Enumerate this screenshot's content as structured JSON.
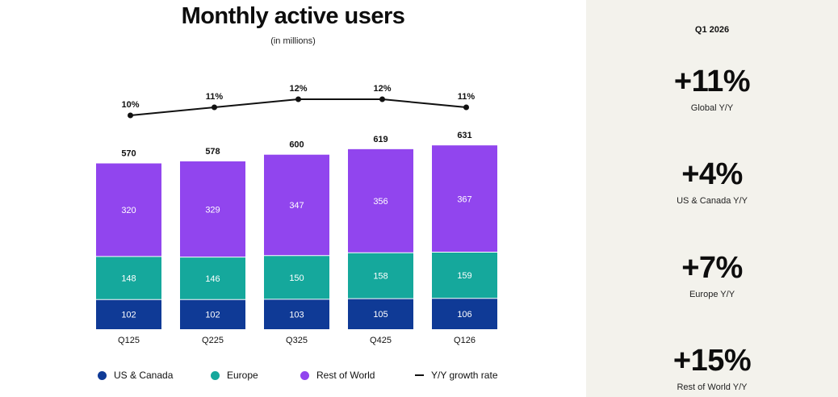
{
  "colors": {
    "us_canada": "#0f3a96",
    "europe": "#15a89c",
    "rest_of_world": "#9145ee",
    "growth_line": "#111111",
    "panel_bg": "#f3f2ec"
  },
  "chart_data": {
    "type": "bar",
    "stacked": true,
    "title": "Monthly active users",
    "subtitle": "(in millions)",
    "categories": [
      "Q125",
      "Q225",
      "Q325",
      "Q425",
      "Q126"
    ],
    "series": [
      {
        "name": "US & Canada",
        "values": [
          102,
          102,
          103,
          105,
          106
        ]
      },
      {
        "name": "Europe",
        "values": [
          148,
          146,
          150,
          158,
          159
        ]
      },
      {
        "name": "Rest of World",
        "values": [
          320,
          329,
          347,
          356,
          367
        ]
      }
    ],
    "totals": [
      570,
      578,
      600,
      619,
      631
    ],
    "growth": {
      "name": "Y/Y growth rate",
      "type": "line",
      "values": [
        10,
        11,
        12,
        12,
        11
      ],
      "labels": [
        "10%",
        "11%",
        "12%",
        "12%",
        "11%"
      ]
    },
    "legend_position": "bottom",
    "grid": false
  },
  "summary": {
    "period": "Q1 2026",
    "kpis": [
      {
        "value": "+11%",
        "label": "Global Y/Y"
      },
      {
        "value": "+4%",
        "label": "US & Canada Y/Y"
      },
      {
        "value": "+7%",
        "label": "Europe Y/Y"
      },
      {
        "value": "+15%",
        "label": "Rest of World Y/Y"
      }
    ]
  }
}
